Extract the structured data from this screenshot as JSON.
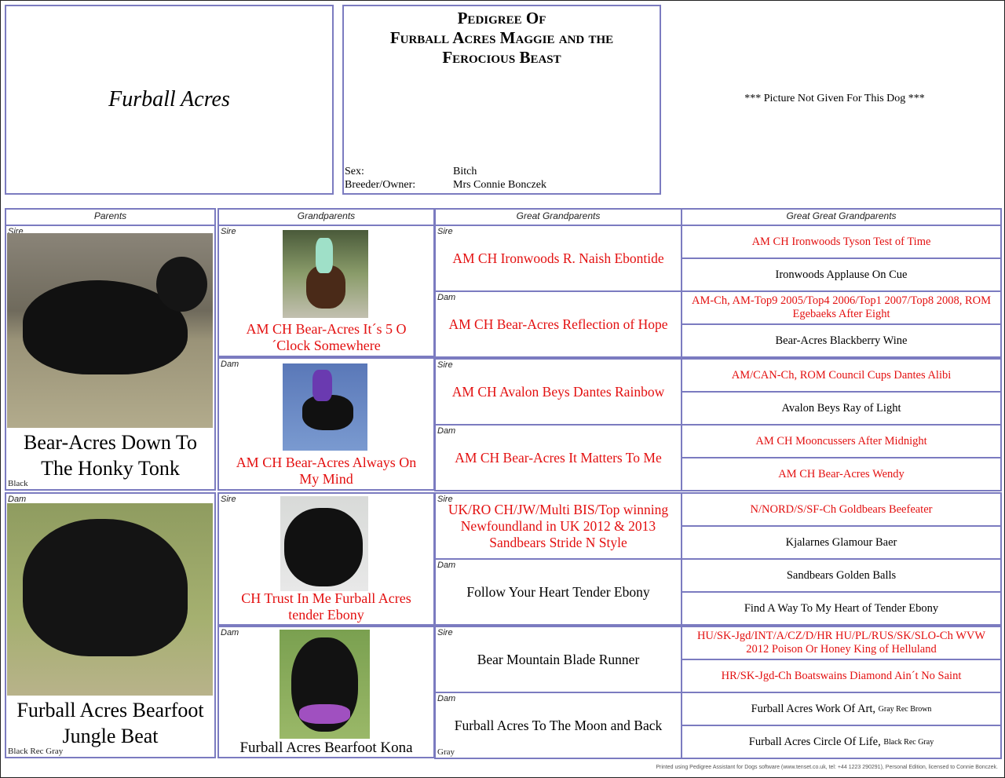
{
  "kennel": "Furball Acres",
  "title": {
    "line1": "Pedigree Of",
    "line2": "Furball Acres Maggie and the Ferocious Beast"
  },
  "details": {
    "sex_label": "Sex:",
    "sex": "Bitch",
    "owner_label": "Breeder/Owner:",
    "owner": "Mrs Connie Bonczek"
  },
  "picture_note": "*** Picture Not Given For This Dog ***",
  "headers": [
    "Parents",
    "Grandparents",
    "Great Grandparents",
    "Great Great Grandparents"
  ],
  "colors": {
    "border": "#7b7bc0",
    "champion_red": "#e31010"
  },
  "parents": [
    {
      "role": "Sire",
      "name": "Bear-Acres Down To The Honky Tonk",
      "color": "Black"
    },
    {
      "role": "Dam",
      "name": "Furball Acres Bearfoot Jungle Beat",
      "color": "Black Rec Gray"
    }
  ],
  "grandparents": [
    {
      "role": "Sire",
      "name": "AM CH Bear-Acres It´s 5 O´Clock Somewhere",
      "champion": true
    },
    {
      "role": "Dam",
      "name": "AM CH Bear-Acres Always On My Mind",
      "champion": true
    },
    {
      "role": "Sire",
      "name": "CH Trust In Me Furball Acres tender Ebony",
      "champion": true
    },
    {
      "role": "Dam",
      "name": "Furball Acres Bearfoot Kona",
      "champion": false
    }
  ],
  "great_grandparents": [
    {
      "role": "Sire",
      "name": "AM CH Ironwoods R. Naish Ebontide",
      "champion": true,
      "color": ""
    },
    {
      "role": "Dam",
      "name": "AM CH Bear-Acres Reflection of Hope",
      "champion": true,
      "color": ""
    },
    {
      "role": "Sire",
      "name": "AM CH Avalon Beys Dantes Rainbow",
      "champion": true,
      "color": ""
    },
    {
      "role": "Dam",
      "name": "AM CH Bear-Acres It Matters To Me",
      "champion": true,
      "color": ""
    },
    {
      "role": "Sire",
      "name": "UK/RO CH/JW/Multi BIS/Top winning Newfoundland in UK 2012 & 2013 Sandbears Stride N Style",
      "champion": true,
      "color": ""
    },
    {
      "role": "Dam",
      "name": "Follow Your Heart Tender Ebony",
      "champion": false,
      "color": ""
    },
    {
      "role": "Sire",
      "name": "Bear Mountain Blade Runner",
      "champion": false,
      "color": ""
    },
    {
      "role": "Dam",
      "name": "Furball Acres To The Moon and Back",
      "champion": false,
      "color": "Gray"
    }
  ],
  "great_great_grandparents": [
    {
      "name": "AM CH Ironwoods Tyson Test of Time",
      "champion": true,
      "color": ""
    },
    {
      "name": "Ironwoods Applause On Cue",
      "champion": false,
      "color": ""
    },
    {
      "name": "AM-Ch, AM-Top9 2005/Top4 2006/Top1 2007/Top8 2008, ROM Egebaeks After Eight",
      "champion": true,
      "color": ""
    },
    {
      "name": "Bear-Acres Blackberry Wine",
      "champion": false,
      "color": ""
    },
    {
      "name": "AM/CAN-Ch, ROM Council Cups Dantes Alibi",
      "champion": true,
      "color": ""
    },
    {
      "name": "Avalon Beys Ray of Light",
      "champion": false,
      "color": ""
    },
    {
      "name": "AM CH Mooncussers After Midnight",
      "champion": true,
      "color": ""
    },
    {
      "name": "AM CH Bear-Acres Wendy",
      "champion": true,
      "color": ""
    },
    {
      "name": "N/NORD/S/SF-Ch Goldbears Beefeater",
      "champion": true,
      "color": ""
    },
    {
      "name": "Kjalarnes Glamour Baer",
      "champion": false,
      "color": ""
    },
    {
      "name": "Sandbears Golden Balls",
      "champion": false,
      "color": ""
    },
    {
      "name": "Find A Way To My Heart of Tender Ebony",
      "champion": false,
      "color": ""
    },
    {
      "name": "HU/SK-Jgd/INT/A/CZ/D/HR HU/PL/RUS/SK/SLO-Ch WVW 2012 Poison Or Honey King of Helluland",
      "champion": true,
      "color": ""
    },
    {
      "name": "HR/SK-Jgd-Ch Boatswains Diamond Ain´t No Saint",
      "champion": true,
      "color": ""
    },
    {
      "name": "Furball Acres Work Of Art,",
      "champion": false,
      "color": "Gray Rec Brown"
    },
    {
      "name": "Furball Acres Circle Of Life,",
      "champion": false,
      "color": "Black Rec Gray"
    }
  ],
  "footer": "Printed using Pedigree Assistant for Dogs software (www.tenset.co.uk, tel: +44 1223 290291), Personal Edition, licensed to Connie Bonczek."
}
